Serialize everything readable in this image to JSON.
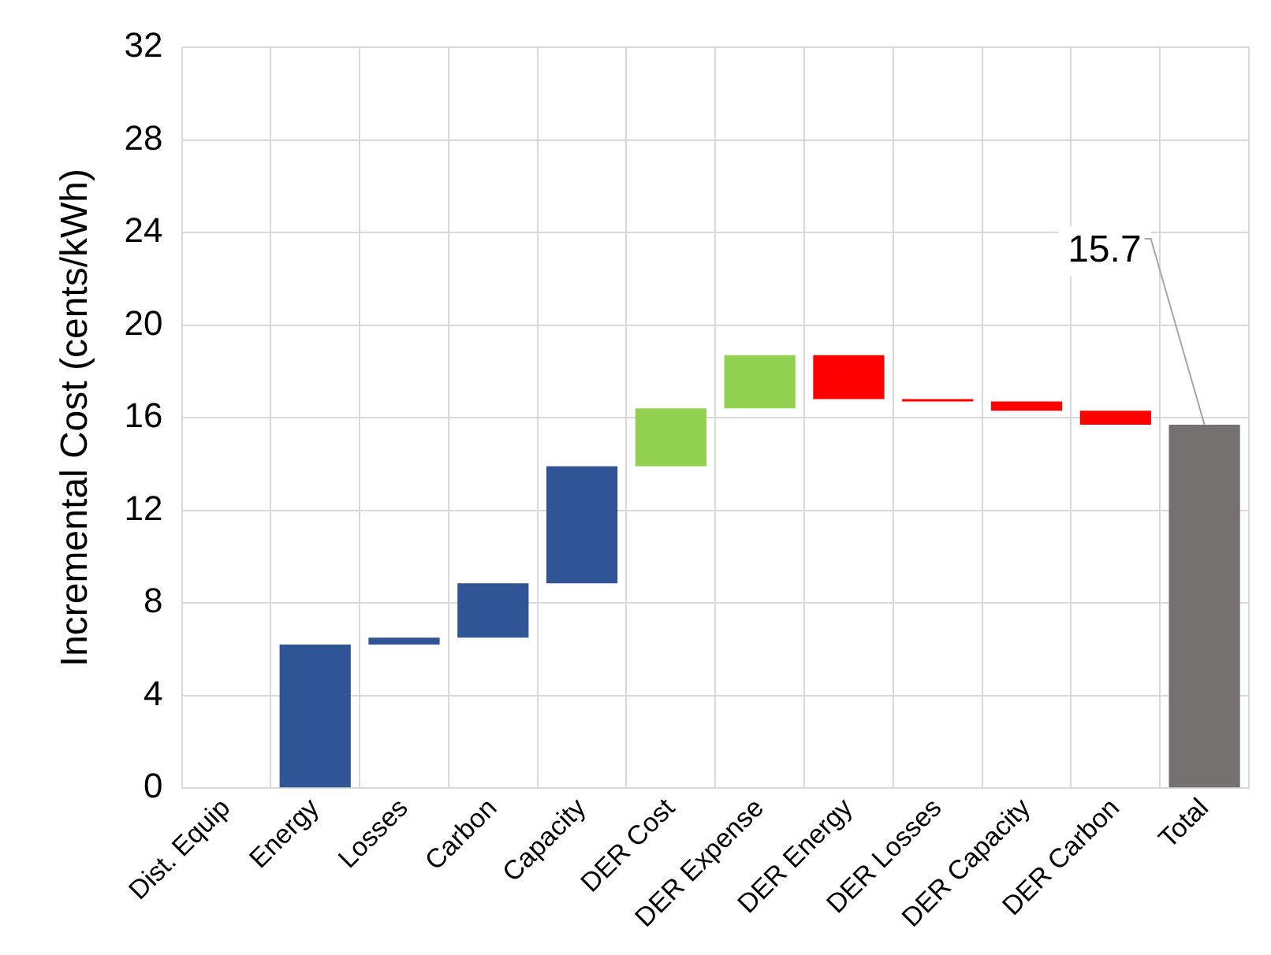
{
  "chart_data": {
    "type": "bar",
    "ylabel": "Incremental Cost (cents/kWh)",
    "categories": [
      "Dist. Equip",
      "Energy",
      "Losses",
      "Carbon",
      "Capacity",
      "DER Cost",
      "DER Expense",
      "DER Energy",
      "DER Losses",
      "DER Capacity",
      "DER Carbon",
      "Total"
    ],
    "base": [
      null,
      0,
      6.2,
      6.5,
      8.85,
      13.9,
      16.4,
      18.7,
      16.8,
      16.7,
      16.3,
      0
    ],
    "values": [
      null,
      6.2,
      0.3,
      2.35,
      5.05,
      2.5,
      2.3,
      -1.9,
      -0.1,
      -0.4,
      -0.6,
      15.7
    ],
    "colors": [
      "#2f5597",
      "#2f5597",
      "#2f5597",
      "#2f5597",
      "#2f5597",
      "#92d050",
      "#92d050",
      "#ff0000",
      "#ff0000",
      "#ff0000",
      "#ff0000",
      "#767171"
    ],
    "value_labels": [
      null,
      null,
      null,
      null,
      null,
      null,
      null,
      null,
      null,
      null,
      null,
      "15.7"
    ],
    "ylim": [
      0,
      32
    ],
    "yticks": [
      0,
      4,
      8,
      12,
      16,
      20,
      24,
      28,
      32
    ],
    "grid": true,
    "legend": false
  }
}
